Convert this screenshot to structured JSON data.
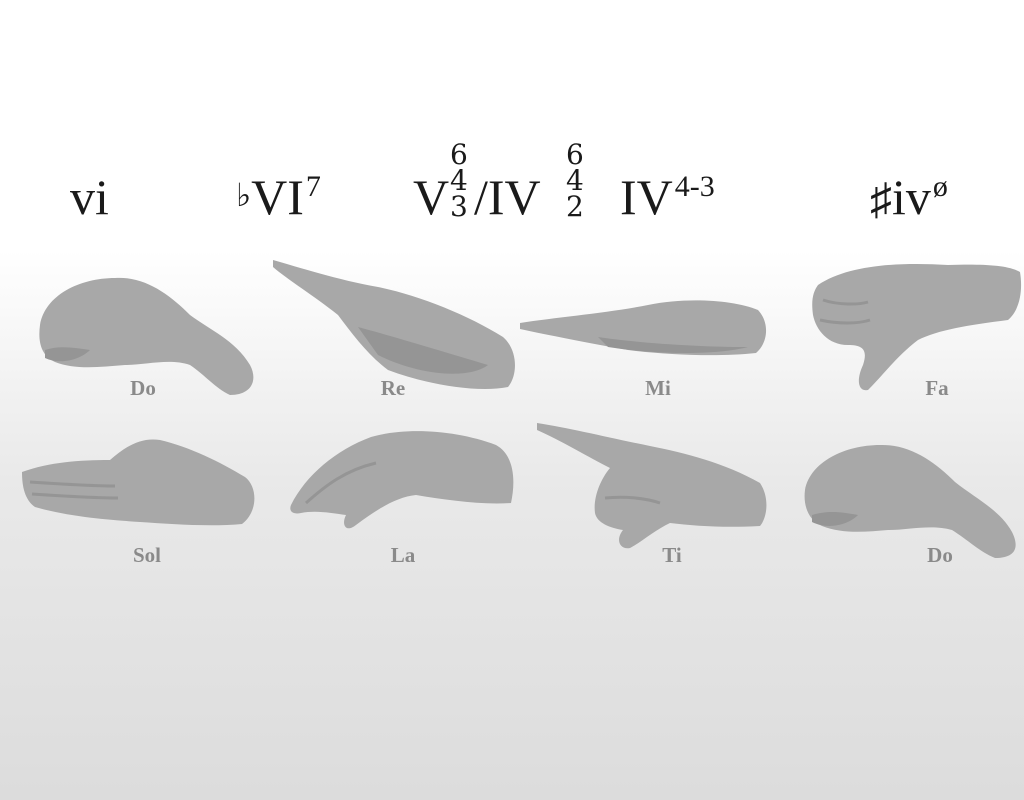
{
  "chords": {
    "c1": {
      "base": "vi"
    },
    "c2": {
      "accidental": "♭",
      "base": "VI",
      "sup": "7"
    },
    "c3": {
      "base": "V",
      "figures": [
        "6",
        "4",
        "3"
      ],
      "suffix": "/IV"
    },
    "c4": {
      "figures": [
        "6",
        "4",
        "2"
      ]
    },
    "c5": {
      "base": "IV",
      "sup": "4-3"
    },
    "c6": {
      "accidental": "♯",
      "base": "iv",
      "sup": "ø"
    }
  },
  "hand_signs": [
    {
      "syllable": "Do",
      "gesture": "closed-fist-icon"
    },
    {
      "syllable": "Re",
      "gesture": "flat-hand-slanted-up-icon"
    },
    {
      "syllable": "Mi",
      "gesture": "flat-hand-level-icon"
    },
    {
      "syllable": "Fa",
      "gesture": "thumb-down-icon"
    },
    {
      "syllable": "Sol",
      "gesture": "open-palm-icon"
    },
    {
      "syllable": "La",
      "gesture": "drooping-hand-icon"
    },
    {
      "syllable": "Ti",
      "gesture": "pointing-finger-icon"
    },
    {
      "syllable": "Do",
      "gesture": "closed-fist-icon"
    }
  ],
  "colors": {
    "hand": "#a8a8a8",
    "hand_shadow": "#959595",
    "label": "#8a8a8a",
    "chord_text": "#1a1a1a"
  }
}
